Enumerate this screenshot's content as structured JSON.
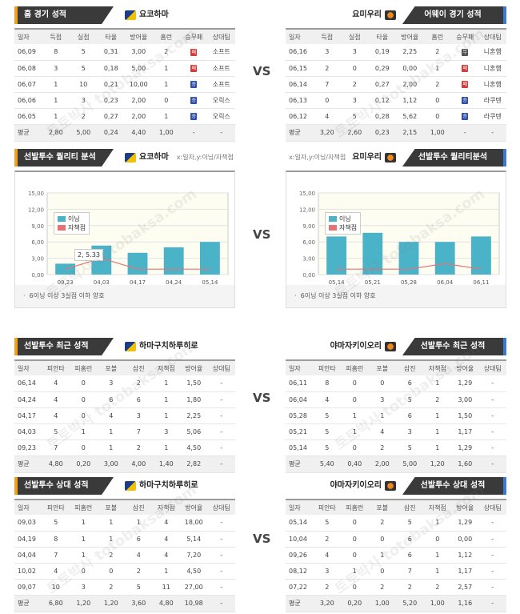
{
  "vs_label": "VS",
  "watermark": "토토박사 totobaksa.com",
  "colors": {
    "bar": "#4ab3c8",
    "line": "#e57373",
    "win": "#2e4fa8",
    "lose": "#d43c3c",
    "draw": "#555555"
  },
  "s1": {
    "left": {
      "tab": "홈 경기 성적",
      "team": "요코하마",
      "logo_icon": "yokohama-logo",
      "headers": [
        "일자",
        "득점",
        "실점",
        "타율",
        "방어율",
        "홈런",
        "승무패",
        "상대팀"
      ],
      "rows": [
        [
          "06,09",
          "8",
          "5",
          "0,31",
          "3,00",
          "2",
          "패",
          "소프트"
        ],
        [
          "06,08",
          "3",
          "5",
          "0,18",
          "5,00",
          "1",
          "패",
          "소프트"
        ],
        [
          "06,07",
          "1",
          "10",
          "0,21",
          "10,00",
          "1",
          "승",
          "소프트"
        ],
        [
          "06,06",
          "1",
          "3",
          "0,23",
          "2,00",
          "0",
          "승",
          "오릭스"
        ],
        [
          "06,05",
          "1",
          "2",
          "0,27",
          "2,00",
          "1",
          "승",
          "오릭스"
        ]
      ],
      "avg": [
        "평균",
        "2,80",
        "5,00",
        "0,24",
        "4,40",
        "1,00",
        "-",
        "-"
      ]
    },
    "right": {
      "tab": "어웨이 경기 성적",
      "team": "요미우리",
      "logo_icon": "yomiuri-logo",
      "headers": [
        "일자",
        "득점",
        "실점",
        "타율",
        "방어율",
        "홈런",
        "승무패",
        "상대팀"
      ],
      "rows": [
        [
          "06,16",
          "3",
          "3",
          "0,19",
          "2,25",
          "2",
          "무",
          "니혼햄"
        ],
        [
          "06,15",
          "2",
          "0",
          "0,29",
          "0,00",
          "1",
          "패",
          "니혼햄"
        ],
        [
          "06,14",
          "7",
          "2",
          "0,27",
          "2,00",
          "2",
          "패",
          "니혼햄"
        ],
        [
          "06,13",
          "0",
          "3",
          "0,12",
          "1,12",
          "0",
          "승",
          "라쿠텐"
        ],
        [
          "06,12",
          "4",
          "5",
          "0,28",
          "5,62",
          "0",
          "승",
          "라쿠텐"
        ]
      ],
      "avg": [
        "평균",
        "3,20",
        "2,60",
        "0,23",
        "2,15",
        "1,00",
        "-",
        "-"
      ]
    }
  },
  "s2": {
    "left": {
      "tab": "선발투수 퀄리티 분석",
      "team": "요코하마",
      "note": "x:일자,y:이닝/자책점",
      "legend": [
        "이닝",
        "자책점"
      ],
      "footnote": "6이닝 이상 3실점 이하 양호",
      "tooltip": "2, 5.33"
    },
    "right": {
      "tab": "선발투수 퀄리티분석",
      "team": "요미우리",
      "note": "x:일자,y:이닝/자책점",
      "legend": [
        "이닝",
        "자책점"
      ],
      "footnote": "6이닝 이상 3실점 이하 양호"
    }
  },
  "chart_data": [
    {
      "type": "bar",
      "categories": [
        "09,23",
        "04,03",
        "04,17",
        "04,24",
        "05,14"
      ],
      "series": [
        {
          "name": "이닝",
          "values": [
            2,
            5.33,
            4,
            5,
            6
          ]
        },
        {
          "name": "자책점",
          "values": [
            1,
            3,
            1,
            1,
            1
          ]
        }
      ],
      "ylim": [
        0,
        15
      ],
      "yticks": [
        "0,00",
        "3,00",
        "6,00",
        "9,00",
        "12,00",
        "15,00"
      ]
    },
    {
      "type": "bar",
      "categories": [
        "05,14",
        "05,21",
        "05,28",
        "06,04",
        "06,11"
      ],
      "series": [
        {
          "name": "이닝",
          "values": [
            7,
            7.67,
            6,
            6,
            7
          ]
        },
        {
          "name": "자책점",
          "values": [
            1,
            1,
            1,
            2,
            1
          ]
        }
      ],
      "ylim": [
        0,
        15
      ],
      "yticks": [
        "0,00",
        "3,00",
        "6,00",
        "9,00",
        "12,00",
        "15,00"
      ]
    }
  ],
  "s3": {
    "left": {
      "tab": "선발투수 최근 성적",
      "team": "하마구치하루히로",
      "logo_icon": "yokohama-logo",
      "headers": [
        "일자",
        "피안타",
        "피홈런",
        "포볼",
        "삼진",
        "자책점",
        "방어율",
        "상대팀"
      ],
      "rows": [
        [
          "06,14",
          "4",
          "0",
          "3",
          "2",
          "1",
          "1,50",
          "-"
        ],
        [
          "04,24",
          "4",
          "0",
          "6",
          "6",
          "1",
          "1,80",
          "-"
        ],
        [
          "04,17",
          "4",
          "0",
          "4",
          "3",
          "1",
          "2,25",
          "-"
        ],
        [
          "04,03",
          "5",
          "1",
          "1",
          "7",
          "3",
          "5,06",
          "-"
        ],
        [
          "09,23",
          "7",
          "0",
          "1",
          "2",
          "1",
          "4,50",
          "-"
        ]
      ],
      "avg": [
        "평균",
        "4,80",
        "0,20",
        "3,00",
        "4,00",
        "1,40",
        "2,82",
        "-"
      ]
    },
    "right": {
      "tab": "선발투수 최근 성적",
      "team": "야마자키이오리",
      "logo_icon": "yomiuri-logo",
      "headers": [
        "일자",
        "피안타",
        "피홈런",
        "포볼",
        "삼진",
        "자책점",
        "방어율",
        "상대팀"
      ],
      "rows": [
        [
          "06,11",
          "8",
          "0",
          "0",
          "6",
          "1",
          "1,29",
          "-"
        ],
        [
          "06,04",
          "4",
          "0",
          "3",
          "5",
          "2",
          "3,00",
          "-"
        ],
        [
          "05,28",
          "5",
          "1",
          "1",
          "6",
          "1",
          "1,50",
          "-"
        ],
        [
          "05,21",
          "5",
          "1",
          "4",
          "3",
          "1",
          "1,17",
          "-"
        ],
        [
          "05,14",
          "5",
          "0",
          "2",
          "5",
          "1",
          "1,29",
          "-"
        ]
      ],
      "avg": [
        "평균",
        "5,40",
        "0,40",
        "2,00",
        "5,00",
        "1,20",
        "1,60",
        "-"
      ]
    }
  },
  "s4": {
    "left": {
      "tab": "선발투수 상대 성적",
      "team": "하마구치하루히로",
      "logo_icon": "yokohama-logo",
      "headers": [
        "일자",
        "피안타",
        "피홈런",
        "포볼",
        "삼진",
        "자책점",
        "방어율",
        "상대팀"
      ],
      "rows": [
        [
          "09,03",
          "5",
          "1",
          "1",
          "1",
          "4",
          "18,00",
          "-"
        ],
        [
          "04,19",
          "8",
          "1",
          "1",
          "6",
          "4",
          "5,14",
          "-"
        ],
        [
          "04,04",
          "7",
          "1",
          "2",
          "4",
          "4",
          "7,20",
          "-"
        ],
        [
          "10,02",
          "4",
          "0",
          "0",
          "2",
          "1",
          "4,50",
          "-"
        ],
        [
          "09,07",
          "10",
          "3",
          "2",
          "5",
          "11",
          "27,00",
          "-"
        ]
      ],
      "avg": [
        "평균",
        "6,80",
        "1,20",
        "1,20",
        "3,60",
        "4,80",
        "10,98",
        "-"
      ]
    },
    "right": {
      "tab": "선발투수 상대 성적",
      "team": "야마자키이오리",
      "logo_icon": "yomiuri-logo",
      "headers": [
        "일자",
        "피안타",
        "피홈런",
        "포볼",
        "삼진",
        "자책점",
        "방어율",
        "상대팀"
      ],
      "rows": [
        [
          "05,14",
          "5",
          "0",
          "2",
          "5",
          "1",
          "1,29",
          "-"
        ],
        [
          "10,04",
          "2",
          "0",
          "0",
          "6",
          "0",
          "0,00",
          "-"
        ],
        [
          "09,26",
          "4",
          "0",
          "1",
          "6",
          "1",
          "1,12",
          "-"
        ],
        [
          "08,12",
          "3",
          "1",
          "0",
          "7",
          "1",
          "1,17",
          "-"
        ],
        [
          "07,22",
          "2",
          "0",
          "2",
          "2",
          "2",
          "2,57",
          "-"
        ]
      ],
      "avg": [
        "평균",
        "3,20",
        "0,20",
        "1,00",
        "5,20",
        "1,00",
        "1,16",
        "-"
      ]
    }
  }
}
